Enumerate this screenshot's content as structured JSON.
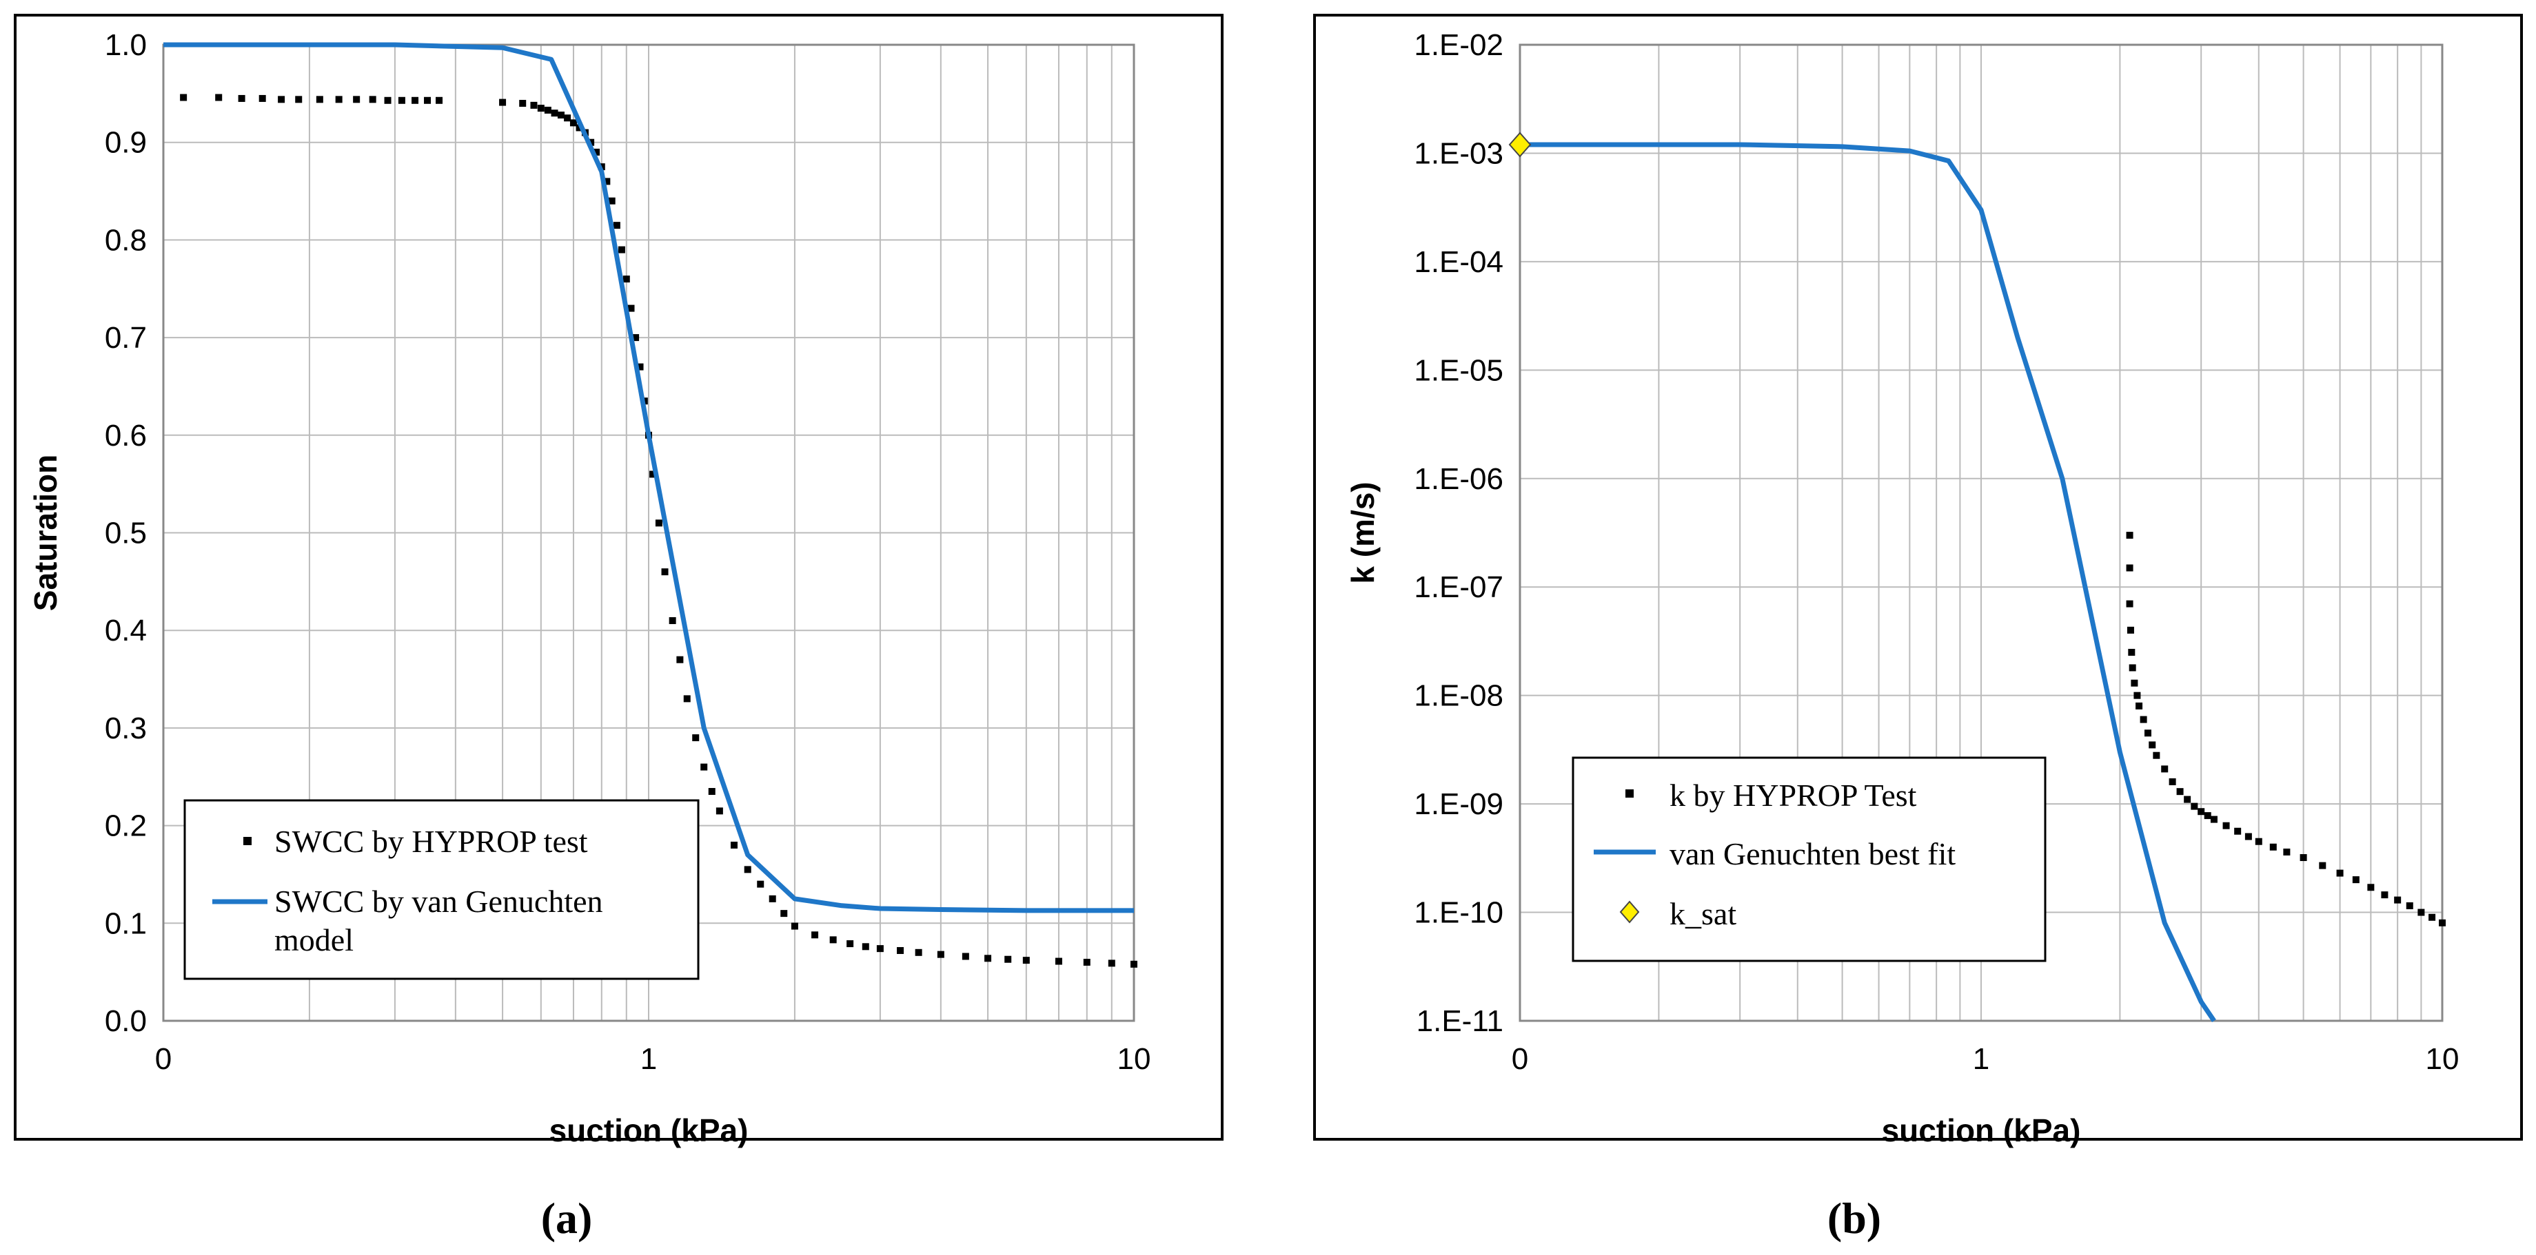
{
  "chart_data": [
    {
      "type": "scatter",
      "panel_label": "(a)",
      "title": "",
      "xlabel": "suction (kPa)",
      "ylabel": "Saturation",
      "xscale": "log",
      "xlim": [
        0.1,
        10
      ],
      "ylim": [
        0,
        1
      ],
      "xtick_labels": [
        "0",
        "1",
        "10"
      ],
      "yticks": [
        "0.0",
        "0.1",
        "0.2",
        "0.3",
        "0.4",
        "0.5",
        "0.6",
        "0.7",
        "0.8",
        "0.9",
        "1.0"
      ],
      "grid": true,
      "legend_position": "bottom-left",
      "series": [
        {
          "name": "SWCC by HYPROP test",
          "kind": "scatter",
          "color": "#000000",
          "x": [
            0.11,
            0.13,
            0.145,
            0.16,
            0.175,
            0.19,
            0.21,
            0.23,
            0.25,
            0.27,
            0.29,
            0.31,
            0.33,
            0.35,
            0.37,
            0.5,
            0.55,
            0.58,
            0.6,
            0.62,
            0.64,
            0.66,
            0.68,
            0.7,
            0.72,
            0.74,
            0.76,
            0.78,
            0.8,
            0.82,
            0.84,
            0.86,
            0.88,
            0.9,
            0.92,
            0.94,
            0.96,
            0.98,
            1.0,
            1.02,
            1.05,
            1.08,
            1.12,
            1.16,
            1.2,
            1.25,
            1.3,
            1.35,
            1.4,
            1.5,
            1.6,
            1.7,
            1.8,
            1.9,
            2.0,
            2.2,
            2.4,
            2.6,
            2.8,
            3.0,
            3.3,
            3.6,
            4.0,
            4.5,
            5.0,
            5.5,
            6.0,
            7.0,
            8.0,
            9.0,
            10.0
          ],
          "y": [
            0.946,
            0.946,
            0.945,
            0.945,
            0.944,
            0.944,
            0.944,
            0.944,
            0.944,
            0.944,
            0.943,
            0.943,
            0.943,
            0.943,
            0.943,
            0.941,
            0.94,
            0.938,
            0.935,
            0.933,
            0.93,
            0.928,
            0.925,
            0.92,
            0.915,
            0.91,
            0.9,
            0.89,
            0.875,
            0.86,
            0.84,
            0.815,
            0.79,
            0.76,
            0.73,
            0.7,
            0.67,
            0.635,
            0.6,
            0.56,
            0.51,
            0.46,
            0.41,
            0.37,
            0.33,
            0.29,
            0.26,
            0.235,
            0.215,
            0.18,
            0.155,
            0.14,
            0.125,
            0.11,
            0.097,
            0.088,
            0.083,
            0.079,
            0.076,
            0.074,
            0.072,
            0.07,
            0.068,
            0.066,
            0.064,
            0.063,
            0.062,
            0.061,
            0.06,
            0.059,
            0.058
          ]
        },
        {
          "name": "SWCC by van Genuchten model",
          "kind": "line",
          "color": "#1f77c8",
          "x": [
            0.1,
            0.3,
            0.5,
            0.63,
            0.8,
            1.0,
            1.3,
            1.6,
            2.0,
            2.5,
            3.0,
            4.0,
            6.0,
            10.0
          ],
          "y": [
            1.0,
            1.0,
            0.997,
            0.985,
            0.87,
            0.6,
            0.3,
            0.17,
            0.125,
            0.118,
            0.115,
            0.114,
            0.113,
            0.113
          ]
        }
      ]
    },
    {
      "type": "scatter",
      "panel_label": "(b)",
      "title": "",
      "xlabel": "suction (kPa)",
      "ylabel": "k  (m/s)",
      "xscale": "log",
      "yscale": "log",
      "xlim": [
        0.1,
        10
      ],
      "ylim": [
        1e-11,
        0.01
      ],
      "xtick_labels": [
        "0",
        "1",
        "10"
      ],
      "yticks": [
        "1.E-11",
        "1.E-10",
        "1.E-09",
        "1.E-08",
        "1.E-07",
        "1.E-06",
        "1.E-05",
        "1.E-04",
        "1.E-03",
        "1.E-02"
      ],
      "grid": true,
      "legend_position": "bottom-left",
      "series": [
        {
          "name": "k by HYPROP Test",
          "kind": "scatter",
          "color": "#000000",
          "x": [
            2.1,
            2.1,
            2.1,
            2.11,
            2.12,
            2.13,
            2.15,
            2.18,
            2.2,
            2.25,
            2.3,
            2.35,
            2.4,
            2.5,
            2.6,
            2.7,
            2.8,
            2.9,
            3.0,
            3.1,
            3.2,
            3.4,
            3.6,
            3.8,
            4.0,
            4.3,
            4.6,
            5.0,
            5.5,
            6.0,
            6.5,
            7.0,
            7.5,
            8.0,
            8.5,
            9.0,
            9.5,
            10.0
          ],
          "y": [
            3e-07,
            1.5e-07,
            7e-08,
            4e-08,
            2.5e-08,
            1.8e-08,
            1.3e-08,
            1e-08,
            8e-09,
            6e-09,
            4.5e-09,
            3.5e-09,
            2.8e-09,
            2.1e-09,
            1.6e-09,
            1.3e-09,
            1.1e-09,
            9.5e-10,
            8.5e-10,
            7.8e-10,
            7.2e-10,
            6.3e-10,
            5.6e-10,
            5e-10,
            4.5e-10,
            4e-10,
            3.6e-10,
            3.2e-10,
            2.7e-10,
            2.3e-10,
            2e-10,
            1.7e-10,
            1.45e-10,
            1.3e-10,
            1.15e-10,
            1e-10,
            9e-11,
            8e-11
          ]
        },
        {
          "name": "van Genuchten best fit",
          "kind": "line",
          "color": "#1f77c8",
          "x": [
            0.1,
            0.3,
            0.5,
            0.7,
            0.85,
            1.0,
            1.2,
            1.5,
            2.0,
            2.5,
            3.0,
            3.2
          ],
          "y": [
            0.0012,
            0.0012,
            0.00115,
            0.00105,
            0.00085,
            0.0003,
            2e-05,
            1e-06,
            3e-09,
            8e-11,
            1.5e-11,
            1e-11
          ]
        },
        {
          "name": "k_sat",
          "kind": "marker",
          "color": "#ffee00",
          "x": [
            0.1
          ],
          "y": [
            0.0012
          ]
        }
      ]
    }
  ]
}
